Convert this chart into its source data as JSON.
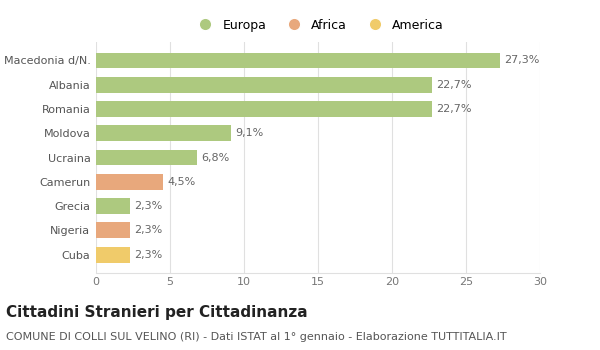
{
  "categories": [
    "Macedonia d/N.",
    "Albania",
    "Romania",
    "Moldova",
    "Ucraina",
    "Camerun",
    "Grecia",
    "Nigeria",
    "Cuba"
  ],
  "values": [
    27.3,
    22.7,
    22.7,
    9.1,
    6.8,
    4.5,
    2.3,
    2.3,
    2.3
  ],
  "labels": [
    "27,3%",
    "22,7%",
    "22,7%",
    "9,1%",
    "6,8%",
    "4,5%",
    "2,3%",
    "2,3%",
    "2,3%"
  ],
  "colors": [
    "#adc97f",
    "#adc97f",
    "#adc97f",
    "#adc97f",
    "#adc97f",
    "#e8a87c",
    "#adc97f",
    "#e8a87c",
    "#f0cb6a"
  ],
  "legend_labels": [
    "Europa",
    "Africa",
    "America"
  ],
  "legend_colors": [
    "#adc97f",
    "#e8a87c",
    "#f0cb6a"
  ],
  "title": "Cittadini Stranieri per Cittadinanza",
  "subtitle": "COMUNE DI COLLI SUL VELINO (RI) - Dati ISTAT al 1° gennaio - Elaborazione TUTTITALIA.IT",
  "xlim": [
    0,
    30
  ],
  "xticks": [
    0,
    5,
    10,
    15,
    20,
    25,
    30
  ],
  "background_color": "#ffffff",
  "grid_color": "#e0e0e0",
  "title_fontsize": 11,
  "subtitle_fontsize": 8,
  "label_fontsize": 8,
  "tick_fontsize": 8,
  "legend_fontsize": 9
}
